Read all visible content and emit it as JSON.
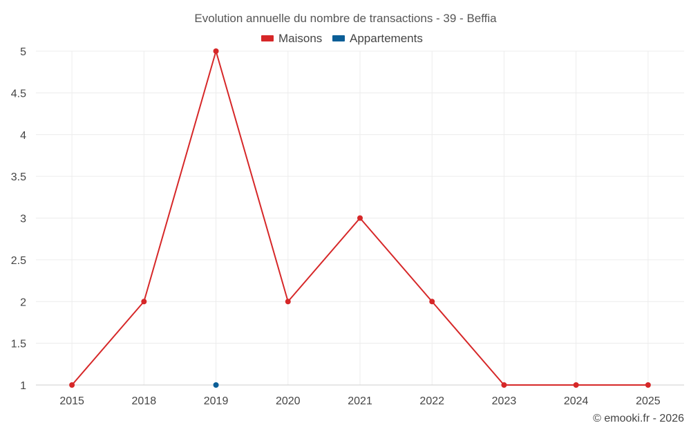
{
  "chart_data": {
    "type": "line",
    "title": "Evolution annuelle du nombre de transactions - 39 - Beffia",
    "categories": [
      "2015",
      "2018",
      "2019",
      "2020",
      "2021",
      "2022",
      "2023",
      "2024",
      "2025"
    ],
    "series": [
      {
        "name": "Maisons",
        "color": "#d62728",
        "values": [
          1,
          2,
          5,
          2,
          3,
          2,
          1,
          1,
          1
        ]
      },
      {
        "name": "Appartements",
        "color": "#0b5e97",
        "values": [
          null,
          null,
          1,
          null,
          null,
          null,
          null,
          null,
          null
        ]
      }
    ],
    "ylim": [
      1,
      5
    ],
    "yticks": [
      "1",
      "1.5",
      "2",
      "2.5",
      "3",
      "3.5",
      "4",
      "4.5",
      "5"
    ],
    "grid": true,
    "legend_position": "top-center"
  },
  "credit": "© emooki.fr - 2026"
}
